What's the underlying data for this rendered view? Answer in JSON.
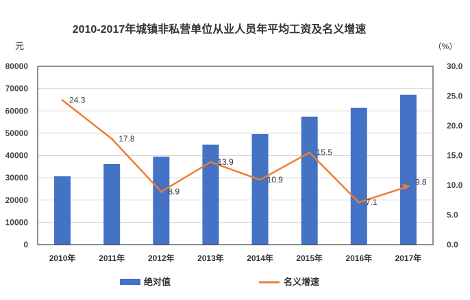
{
  "chart_data": {
    "type": "bar+line",
    "title": "2010-2017年城镇非私营单位从业人员年平均工资及名义增速",
    "ylabel_left": "元",
    "ylabel_right": "（%）",
    "categories": [
      "2010年",
      "2011年",
      "2012年",
      "2013年",
      "2014年",
      "2015年",
      "2016年",
      "2017年"
    ],
    "ylim_left": [
      0,
      80000
    ],
    "ylim_right": [
      0,
      30
    ],
    "yticks_left": [
      "0",
      "10000",
      "20000",
      "30000",
      "40000",
      "50000",
      "60000",
      "70000",
      "80000"
    ],
    "yticks_right": [
      "0.0",
      "5.0",
      "10.0",
      "15.0",
      "20.0",
      "25.0",
      "30.0"
    ],
    "grid": true,
    "legend_position": "bottom",
    "series": [
      {
        "name": "绝对值",
        "type": "bar",
        "axis": "left",
        "color": "#4472C4",
        "values": [
          30650,
          36170,
          39430,
          44850,
          49650,
          57410,
          61380,
          67220
        ]
      },
      {
        "name": "名义增速",
        "type": "line",
        "axis": "right",
        "color": "#ED7D31",
        "values": [
          24.3,
          17.8,
          8.9,
          13.9,
          10.9,
          15.5,
          7.1,
          9.8
        ],
        "labels": [
          "24.3",
          "17.8",
          "8.9",
          "13.9",
          "10.9",
          "15.5",
          "7.1",
          "9.8"
        ]
      }
    ]
  }
}
